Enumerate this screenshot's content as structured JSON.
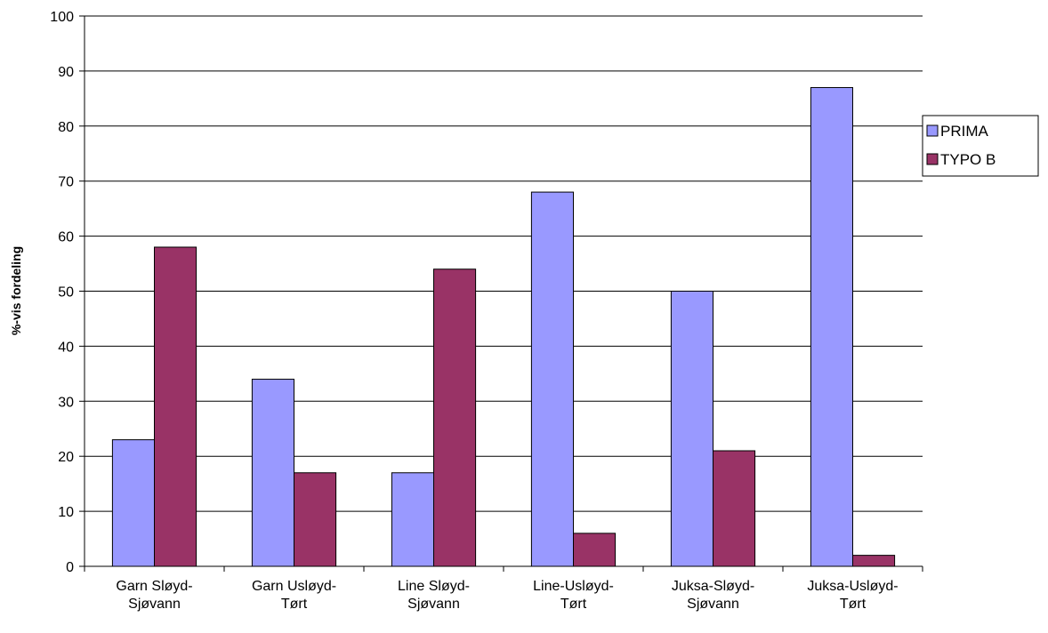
{
  "chart_data": {
    "type": "bar",
    "title": "",
    "xlabel": "",
    "ylabel": "%-vis fordeling",
    "ylim": [
      0,
      100
    ],
    "yticks": [
      0,
      10,
      20,
      30,
      40,
      50,
      60,
      70,
      80,
      90,
      100
    ],
    "grid": true,
    "legend_position": "right",
    "categories": [
      [
        "Garn Sløyd-",
        "Sjøvann"
      ],
      [
        "Garn Usløyd-",
        "Tørt"
      ],
      [
        "Line Sløyd-",
        "Sjøvann"
      ],
      [
        "Line-Usløyd-",
        "Tørt"
      ],
      [
        "Juksa-Sløyd-",
        "Sjøvann"
      ],
      [
        "Juksa-Usløyd-",
        "Tørt"
      ]
    ],
    "series": [
      {
        "name": "PRIMA",
        "color": "#9999FF",
        "values": [
          23,
          34,
          17,
          68,
          50,
          87
        ]
      },
      {
        "name": "TYPO B",
        "color": "#993366",
        "values": [
          58,
          17,
          54,
          6,
          21,
          2
        ]
      }
    ]
  }
}
